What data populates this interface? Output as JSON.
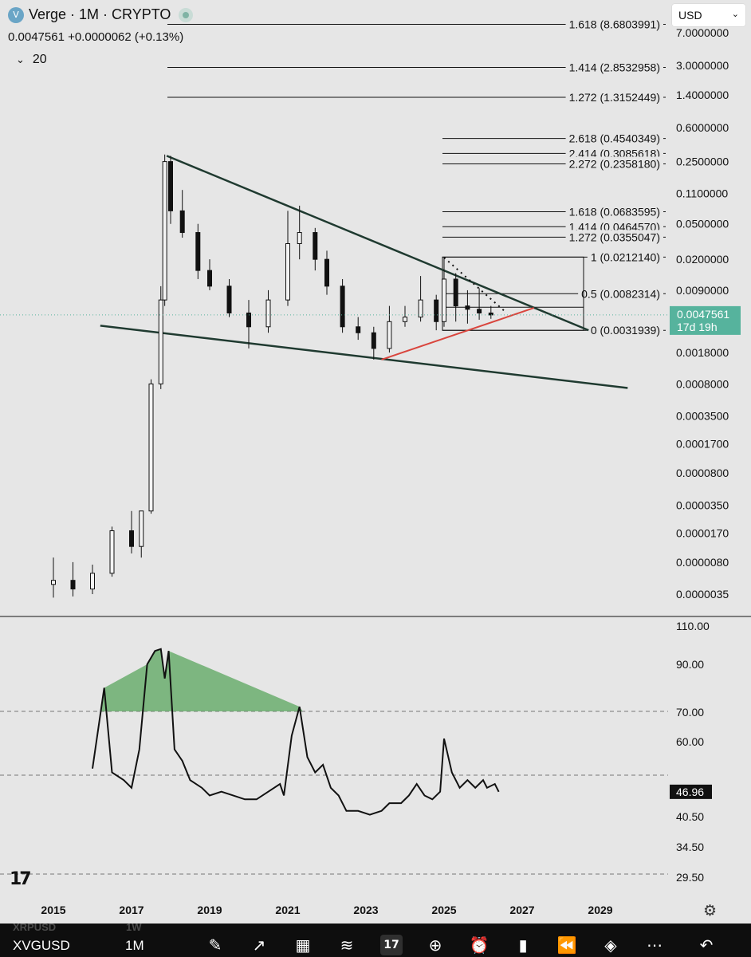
{
  "header": {
    "symbol_icon": "V",
    "title": "Verge · 1M · CRYPTO",
    "price": "0.0047561",
    "change": "+0.0000062 (+0.13%)",
    "indicator_collapse_icon": "chevron-down-icon",
    "indicator_count": "20",
    "currency": "USD",
    "currency_chevron": "chevron-down-icon"
  },
  "chart_data": [
    {
      "type": "candlestick",
      "title": "Verge · 1M · CRYPTO",
      "y_scale": "log",
      "y_tick_labels": [
        "7.0000000",
        "3.0000000",
        "1.4000000",
        "0.6000000",
        "0.2500000",
        "0.1100000",
        "0.0500000",
        "0.0200000",
        "0.0090000",
        "0.0018000",
        "0.0008000",
        "0.0003500",
        "0.0001700",
        "0.0000800",
        "0.0000350",
        "0.0000170",
        "0.0000080",
        "0.0000035"
      ],
      "x_tick_labels": [
        "2015",
        "2017",
        "2019",
        "2021",
        "2023",
        "2025",
        "2027",
        "2029"
      ],
      "last_price_label": "0.0047561",
      "countdown_label": "17d 19h",
      "fib_levels": [
        {
          "label": "1.618 (8.6803991)",
          "value": 8.6803991
        },
        {
          "label": "1.414 (2.8532958)",
          "value": 2.8532958
        },
        {
          "label": "1.272 (1.3152449)",
          "value": 1.3152449
        },
        {
          "label": "2.618 (0.4540349)",
          "value": 0.4540349
        },
        {
          "label": "2.414 (0.3085618)",
          "value": 0.3085618
        },
        {
          "label": "2.272 (0.2358180)",
          "value": 0.235818
        },
        {
          "label": "1.618 (0.0683595)",
          "value": 0.0683595
        },
        {
          "label": "1.414 (0.0464570)",
          "value": 0.046457
        },
        {
          "label": "1.272 (0.0355047)",
          "value": 0.0355047
        },
        {
          "label": "1 (0.0212140)",
          "value": 0.021214
        },
        {
          "label": "0.5 (0.0082314)",
          "value": 0.0082314
        },
        {
          "label": "0 (0.0031939)",
          "value": 0.0031939
        }
      ],
      "candles": [
        {
          "t": 2015.0,
          "o": 4.5e-06,
          "h": 9e-06,
          "l": 3.2e-06,
          "c": 5e-06
        },
        {
          "t": 2015.5,
          "o": 5e-06,
          "h": 8e-06,
          "l": 3.3e-06,
          "c": 4e-06
        },
        {
          "t": 2016.0,
          "o": 4e-06,
          "h": 7.5e-06,
          "l": 3.5e-06,
          "c": 6e-06
        },
        {
          "t": 2016.5,
          "o": 6e-06,
          "h": 2e-05,
          "l": 5.5e-06,
          "c": 1.8e-05
        },
        {
          "t": 2017.0,
          "o": 1.8e-05,
          "h": 3e-05,
          "l": 1e-05,
          "c": 1.2e-05
        },
        {
          "t": 2017.25,
          "o": 1.2e-05,
          "h": 3e-05,
          "l": 9e-06,
          "c": 3e-05
        },
        {
          "t": 2017.5,
          "o": 3e-05,
          "h": 0.0009,
          "l": 2.8e-05,
          "c": 0.0008
        },
        {
          "t": 2017.75,
          "o": 0.0008,
          "h": 0.01,
          "l": 0.0007,
          "c": 0.007
        },
        {
          "t": 2017.85,
          "o": 0.007,
          "h": 0.3,
          "l": 0.006,
          "c": 0.25
        },
        {
          "t": 2018.0,
          "o": 0.25,
          "h": 0.29,
          "l": 0.05,
          "c": 0.07
        },
        {
          "t": 2018.3,
          "o": 0.07,
          "h": 0.12,
          "l": 0.035,
          "c": 0.04
        },
        {
          "t": 2018.7,
          "o": 0.04,
          "h": 0.05,
          "l": 0.012,
          "c": 0.015
        },
        {
          "t": 2019.0,
          "o": 0.015,
          "h": 0.02,
          "l": 0.009,
          "c": 0.01
        },
        {
          "t": 2019.5,
          "o": 0.01,
          "h": 0.012,
          "l": 0.0045,
          "c": 0.005
        },
        {
          "t": 2020.0,
          "o": 0.005,
          "h": 0.007,
          "l": 0.002,
          "c": 0.0035
        },
        {
          "t": 2020.5,
          "o": 0.0035,
          "h": 0.009,
          "l": 0.003,
          "c": 0.007
        },
        {
          "t": 2021.0,
          "o": 0.007,
          "h": 0.07,
          "l": 0.006,
          "c": 0.03
        },
        {
          "t": 2021.3,
          "o": 0.03,
          "h": 0.08,
          "l": 0.02,
          "c": 0.04
        },
        {
          "t": 2021.7,
          "o": 0.04,
          "h": 0.045,
          "l": 0.015,
          "c": 0.02
        },
        {
          "t": 2022.0,
          "o": 0.02,
          "h": 0.025,
          "l": 0.008,
          "c": 0.01
        },
        {
          "t": 2022.4,
          "o": 0.01,
          "h": 0.012,
          "l": 0.003,
          "c": 0.0035
        },
        {
          "t": 2022.8,
          "o": 0.0035,
          "h": 0.0045,
          "l": 0.0025,
          "c": 0.003
        },
        {
          "t": 2023.2,
          "o": 0.003,
          "h": 0.0035,
          "l": 0.0015,
          "c": 0.002
        },
        {
          "t": 2023.6,
          "o": 0.002,
          "h": 0.006,
          "l": 0.0018,
          "c": 0.004
        },
        {
          "t": 2024.0,
          "o": 0.004,
          "h": 0.006,
          "l": 0.0035,
          "c": 0.0045
        },
        {
          "t": 2024.4,
          "o": 0.0045,
          "h": 0.013,
          "l": 0.004,
          "c": 0.007
        },
        {
          "t": 2024.8,
          "o": 0.007,
          "h": 0.008,
          "l": 0.0032,
          "c": 0.004
        },
        {
          "t": 2025.0,
          "o": 0.004,
          "h": 0.021,
          "l": 0.0035,
          "c": 0.012
        },
        {
          "t": 2025.3,
          "o": 0.012,
          "h": 0.014,
          "l": 0.004,
          "c": 0.006
        },
        {
          "t": 2025.6,
          "o": 0.006,
          "h": 0.009,
          "l": 0.0038,
          "c": 0.0055
        },
        {
          "t": 2025.9,
          "o": 0.0055,
          "h": 0.0095,
          "l": 0.0042,
          "c": 0.005
        },
        {
          "t": 2026.2,
          "o": 0.005,
          "h": 0.006,
          "l": 0.0043,
          "c": 0.0047561
        }
      ],
      "trendlines": [
        {
          "name": "upper-resistance",
          "points": [
            [
              2017.9,
              0.29
            ],
            [
              2028.7,
              0.0032
            ]
          ]
        },
        {
          "name": "lower-support",
          "points": [
            [
              2016.2,
              0.0036
            ],
            [
              2029.7,
              0.00072
            ]
          ]
        },
        {
          "name": "rising-support",
          "points": [
            [
              2023.4,
              0.0015
            ],
            [
              2027.3,
              0.0057
            ]
          ]
        }
      ]
    },
    {
      "type": "line",
      "title": "",
      "y_tick_labels": [
        "110.00",
        "90.00",
        "70.00",
        "60.00",
        "40.50",
        "34.50",
        "29.50"
      ],
      "ylim": [
        28,
        112
      ],
      "reference_lines": [
        70,
        50,
        30
      ],
      "last_value_label": "46.96",
      "points": [
        {
          "t": 2016.0,
          "v": 53
        },
        {
          "t": 2016.3,
          "v": 80
        },
        {
          "t": 2016.5,
          "v": 52
        },
        {
          "t": 2016.8,
          "v": 50
        },
        {
          "t": 2017.0,
          "v": 48
        },
        {
          "t": 2017.2,
          "v": 58
        },
        {
          "t": 2017.4,
          "v": 90
        },
        {
          "t": 2017.6,
          "v": 97
        },
        {
          "t": 2017.75,
          "v": 98
        },
        {
          "t": 2017.85,
          "v": 84
        },
        {
          "t": 2017.95,
          "v": 97
        },
        {
          "t": 2018.1,
          "v": 58
        },
        {
          "t": 2018.3,
          "v": 55
        },
        {
          "t": 2018.5,
          "v": 50
        },
        {
          "t": 2018.8,
          "v": 48
        },
        {
          "t": 2019.0,
          "v": 46
        },
        {
          "t": 2019.3,
          "v": 47
        },
        {
          "t": 2019.6,
          "v": 46
        },
        {
          "t": 2019.9,
          "v": 45
        },
        {
          "t": 2020.2,
          "v": 45
        },
        {
          "t": 2020.5,
          "v": 47
        },
        {
          "t": 2020.8,
          "v": 49
        },
        {
          "t": 2020.9,
          "v": 46
        },
        {
          "t": 2021.1,
          "v": 62
        },
        {
          "t": 2021.3,
          "v": 72
        },
        {
          "t": 2021.5,
          "v": 56
        },
        {
          "t": 2021.7,
          "v": 52
        },
        {
          "t": 2021.9,
          "v": 54
        },
        {
          "t": 2022.1,
          "v": 48
        },
        {
          "t": 2022.3,
          "v": 46
        },
        {
          "t": 2022.5,
          "v": 42
        },
        {
          "t": 2022.8,
          "v": 42
        },
        {
          "t": 2023.1,
          "v": 41
        },
        {
          "t": 2023.4,
          "v": 42
        },
        {
          "t": 2023.6,
          "v": 44
        },
        {
          "t": 2023.9,
          "v": 44
        },
        {
          "t": 2024.1,
          "v": 46
        },
        {
          "t": 2024.3,
          "v": 49
        },
        {
          "t": 2024.5,
          "v": 46
        },
        {
          "t": 2024.7,
          "v": 45
        },
        {
          "t": 2024.9,
          "v": 47
        },
        {
          "t": 2025.0,
          "v": 61
        },
        {
          "t": 2025.2,
          "v": 52
        },
        {
          "t": 2025.4,
          "v": 48
        },
        {
          "t": 2025.6,
          "v": 50
        },
        {
          "t": 2025.8,
          "v": 48
        },
        {
          "t": 2026.0,
          "v": 50
        },
        {
          "t": 2026.1,
          "v": 48
        },
        {
          "t": 2026.3,
          "v": 49
        },
        {
          "t": 2026.4,
          "v": 46.96
        }
      ]
    }
  ],
  "colors": {
    "background": "#e6e6e6",
    "candle": "#111111",
    "trendline": "#1f3a30",
    "support_red": "#d9453d",
    "price_badge": "#56b39d",
    "rsi_fill": "#5aa55e",
    "dashed_guide": "#777777"
  },
  "bottom_bar": {
    "ghost_symbol": "XRPUSD",
    "ghost_interval": "1W",
    "symbol": "XVGUSD",
    "interval": "1M",
    "tools": [
      "draw-icon",
      "chart-type-icon",
      "layout-icon",
      "indicators-icon",
      "tradingview-icon",
      "add-icon",
      "alert-icon",
      "candles-icon",
      "replay-icon",
      "layers-icon",
      "more-icon",
      "back-icon"
    ]
  },
  "footer": {
    "logo_icon": "tradingview-logo-icon",
    "settings_icon": "gear-icon"
  }
}
